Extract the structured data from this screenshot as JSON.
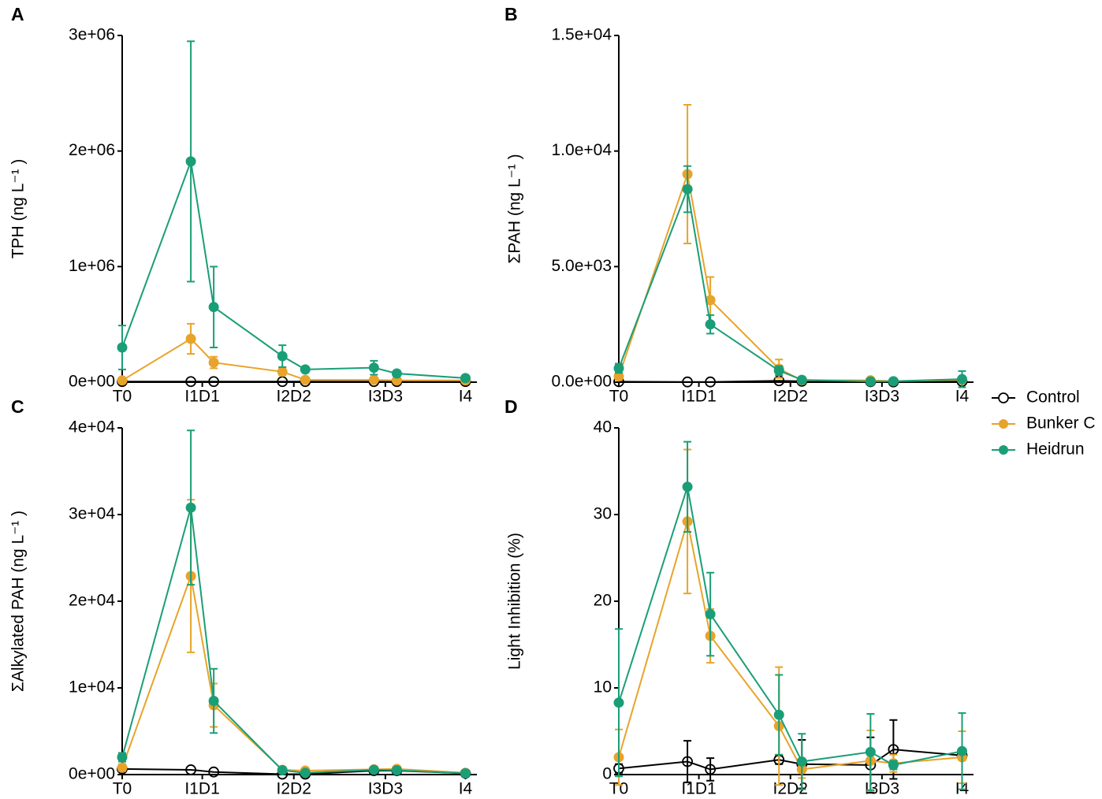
{
  "chart_data": [
    {
      "type": "line",
      "label": "A",
      "y_label": "TPH (ng L⁻¹ )",
      "x": [
        0,
        3,
        4,
        7,
        8,
        11,
        12,
        15
      ],
      "xlim": [
        0,
        15.5
      ],
      "xticks": [
        {
          "value": 0,
          "label": "T0"
        },
        {
          "value": 3.5,
          "label": "I1D1"
        },
        {
          "value": 7.5,
          "label": "I2D2"
        },
        {
          "value": 11.5,
          "label": "I3D3"
        },
        {
          "value": 15,
          "label": "I4"
        }
      ],
      "ylim": [
        0,
        3000000
      ],
      "yticks": [
        {
          "value": 0,
          "label": "0e+00"
        },
        {
          "value": 1000000,
          "label": "1e+06"
        },
        {
          "value": 2000000,
          "label": "2e+06"
        },
        {
          "value": 3000000,
          "label": "3e+06"
        }
      ],
      "series": [
        {
          "name": "Control",
          "color": "#000000",
          "marker": "open",
          "values": [
            5000,
            5000,
            5000,
            5000,
            5000,
            5000,
            5000,
            5000
          ]
        },
        {
          "name": "Bunker C",
          "color": "#e8a32a",
          "marker": "filled",
          "values": [
            15000,
            375000,
            170000,
            90000,
            20000,
            20000,
            15000,
            15000
          ],
          "errors": [
            20000,
            130000,
            50000,
            30000,
            10000,
            10000,
            8000,
            8000
          ]
        },
        {
          "name": "Heidrun",
          "color": "#1a9e77",
          "marker": "filled",
          "values": [
            300000,
            1910000,
            650000,
            225000,
            110000,
            125000,
            75000,
            35000
          ],
          "errors": [
            190000,
            1040000,
            350000,
            95000,
            10000,
            60000,
            20000,
            15000
          ]
        }
      ]
    },
    {
      "type": "line",
      "label": "B",
      "y_label": "ΣPAH (ng L⁻¹ )",
      "x": [
        0,
        3,
        4,
        7,
        8,
        11,
        12,
        15
      ],
      "xlim": [
        0,
        15.5
      ],
      "xticks": [
        {
          "value": 0,
          "label": "T0"
        },
        {
          "value": 3.5,
          "label": "I1D1"
        },
        {
          "value": 7.5,
          "label": "I2D2"
        },
        {
          "value": 11.5,
          "label": "I3D3"
        },
        {
          "value": 15,
          "label": "I4"
        }
      ],
      "ylim": [
        0,
        15000
      ],
      "yticks": [
        {
          "value": 0,
          "label": "0.0e+00"
        },
        {
          "value": 5000,
          "label": "5.0e+03"
        },
        {
          "value": 10000,
          "label": "1.0e+04"
        },
        {
          "value": 15000,
          "label": "1.5e+04"
        }
      ],
      "series": [
        {
          "name": "Control",
          "color": "#000000",
          "marker": "open",
          "values": [
            20,
            10,
            10,
            60,
            40,
            20,
            10,
            30
          ]
        },
        {
          "name": "Bunker C",
          "color": "#e8a32a",
          "marker": "filled",
          "values": [
            250,
            9000,
            3550,
            580,
            80,
            80,
            40,
            100
          ],
          "errors": [
            150,
            3000,
            1000,
            400,
            50,
            50,
            30,
            60
          ]
        },
        {
          "name": "Heidrun",
          "color": "#1a9e77",
          "marker": "filled",
          "values": [
            600,
            8350,
            2500,
            500,
            100,
            30,
            40,
            130
          ],
          "errors": [
            200,
            1000,
            400,
            200,
            60,
            20,
            20,
            350
          ]
        }
      ]
    },
    {
      "type": "line",
      "label": "C",
      "y_label": "ΣAlkylated PAH (ng L⁻¹ )",
      "x": [
        0,
        3,
        4,
        7,
        8,
        11,
        12,
        15
      ],
      "xlim": [
        0,
        15.5
      ],
      "xticks": [
        {
          "value": 0,
          "label": "T0"
        },
        {
          "value": 3.5,
          "label": "I1D1"
        },
        {
          "value": 7.5,
          "label": "I2D2"
        },
        {
          "value": 11.5,
          "label": "I3D3"
        },
        {
          "value": 15,
          "label": "I4"
        }
      ],
      "ylim": [
        0,
        40000
      ],
      "yticks": [
        {
          "value": 0,
          "label": "0e+00"
        },
        {
          "value": 10000,
          "label": "1e+04"
        },
        {
          "value": 20000,
          "label": "2e+04"
        },
        {
          "value": 30000,
          "label": "3e+04"
        },
        {
          "value": 40000,
          "label": "4e+04"
        }
      ],
      "series": [
        {
          "name": "Control",
          "color": "#000000",
          "marker": "open",
          "values": [
            650,
            550,
            300,
            50,
            50,
            450,
            450,
            150
          ]
        },
        {
          "name": "Bunker C",
          "color": "#e8a32a",
          "marker": "filled",
          "values": [
            800,
            22900,
            8000,
            550,
            450,
            600,
            650,
            200
          ],
          "errors": [
            400,
            8800,
            2500,
            200,
            150,
            200,
            200,
            100
          ]
        },
        {
          "name": "Heidrun",
          "color": "#1a9e77",
          "marker": "filled",
          "values": [
            2000,
            30800,
            8500,
            500,
            200,
            550,
            500,
            150
          ],
          "errors": [
            500,
            8900,
            3700,
            200,
            100,
            200,
            200,
            100
          ]
        }
      ]
    },
    {
      "type": "line",
      "label": "D",
      "y_label": "Light Inhibition (%)",
      "x": [
        0,
        3,
        4,
        7,
        8,
        11,
        12,
        15
      ],
      "xlim": [
        0,
        15.5
      ],
      "xticks": [
        {
          "value": 0,
          "label": "T0"
        },
        {
          "value": 3.5,
          "label": "I1D1"
        },
        {
          "value": 7.5,
          "label": "I2D2"
        },
        {
          "value": 11.5,
          "label": "I3D3"
        },
        {
          "value": 15,
          "label": "I4"
        }
      ],
      "ylim": [
        0,
        40
      ],
      "yticks": [
        0,
        10,
        20,
        30,
        40
      ],
      "legend": "right",
      "series": [
        {
          "name": "Control",
          "color": "#000000",
          "marker": "open",
          "values": [
            0.7,
            1.5,
            0.6,
            1.7,
            1.2,
            1.1,
            2.9,
            2.2
          ],
          "errors": [
            0.5,
            2.4,
            1.3,
            0.5,
            2.8,
            3.2,
            3.4,
            0.5
          ]
        },
        {
          "name": "Bunker C",
          "color": "#e8a32a",
          "marker": "filled",
          "values": [
            2.0,
            29.2,
            16.0,
            5.6,
            0.6,
            1.6,
            1.3,
            2.0
          ],
          "errors": [
            3.2,
            8.3,
            3.1,
            6.8,
            1.0,
            3.5,
            1.0,
            3.0
          ]
        },
        {
          "name": "Heidrun",
          "color": "#1a9e77",
          "marker": "filled",
          "values": [
            8.3,
            33.2,
            18.5,
            6.9,
            1.5,
            2.6,
            1.1,
            2.7
          ],
          "errors": [
            8.5,
            5.2,
            4.8,
            4.6,
            3.2,
            4.4,
            0.5,
            4.4
          ]
        }
      ]
    }
  ]
}
